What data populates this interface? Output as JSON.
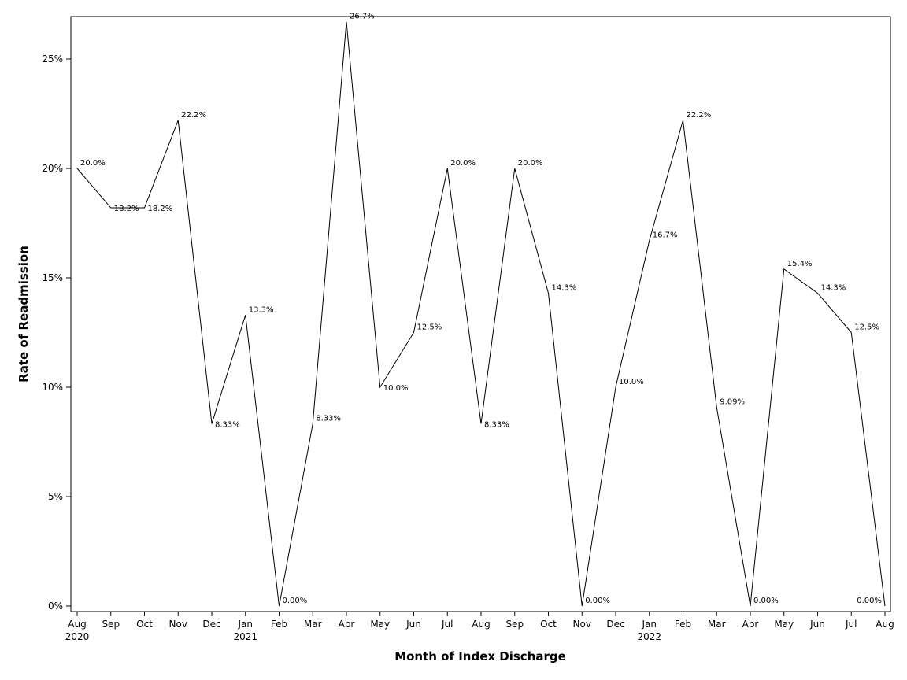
{
  "chart_data": {
    "type": "line",
    "xlabel": "Month of Index Discharge",
    "ylabel": "Rate of Readmission",
    "ylim": [
      0,
      0.27
    ],
    "y_ticks": [
      0,
      0.05,
      0.1,
      0.15,
      0.2,
      0.25
    ],
    "y_tick_labels": [
      "0%",
      "5%",
      "10%",
      "15%",
      "20%",
      "25%"
    ],
    "grid": false,
    "x": [
      "2020-08",
      "2020-09",
      "2020-10",
      "2020-11",
      "2020-12",
      "2021-01",
      "2021-02",
      "2021-03",
      "2021-04",
      "2021-05",
      "2021-06",
      "2021-07",
      "2021-08",
      "2021-09",
      "2021-10",
      "2021-11",
      "2021-12",
      "2022-01",
      "2022-02",
      "2022-03",
      "2022-04",
      "2022-05",
      "2022-06",
      "2022-07",
      "2022-08"
    ],
    "x_tick_labels": [
      "Aug",
      "Sep",
      "Oct",
      "Nov",
      "Dec",
      "Jan",
      "Feb",
      "Mar",
      "Apr",
      "May",
      "Jun",
      "Jul",
      "Aug",
      "Sep",
      "Oct",
      "Nov",
      "Dec",
      "Jan",
      "Feb",
      "Mar",
      "Apr",
      "May",
      "Jun",
      "Jul",
      "Aug"
    ],
    "x_tick_sublabels": [
      "2020",
      "",
      "",
      "",
      "",
      "2021",
      "",
      "",
      "",
      "",
      "",
      "",
      "",
      "",
      "",
      "",
      "",
      "2022",
      "",
      "",
      "",
      "",
      "",
      "",
      ""
    ],
    "series": [
      {
        "values": [
          0.2,
          0.182,
          0.182,
          0.222,
          0.0833,
          0.133,
          0.0,
          0.0833,
          0.267,
          0.1,
          0.125,
          0.2,
          0.0833,
          0.2,
          0.143,
          0.0,
          0.1,
          0.167,
          0.222,
          0.0909,
          0.0,
          0.154,
          0.143,
          0.125,
          0.0
        ],
        "data_labels": [
          "20.0%",
          "18.2%",
          "18.2%",
          "22.2%",
          "8.33%",
          "13.3%",
          "0.00%",
          "8.33%",
          "26.7%",
          "10.0%",
          "12.5%",
          "20.0%",
          "8.33%",
          "20.0%",
          "14.3%",
          "0.00%",
          "10.0%",
          "16.7%",
          "22.2%",
          "9.09%",
          "0.00%",
          "15.4%",
          "14.3%",
          "12.5%",
          "0.00%"
        ]
      }
    ],
    "colors": {
      "line": "#000000",
      "axis": "#000000",
      "background": "#ffffff"
    }
  }
}
